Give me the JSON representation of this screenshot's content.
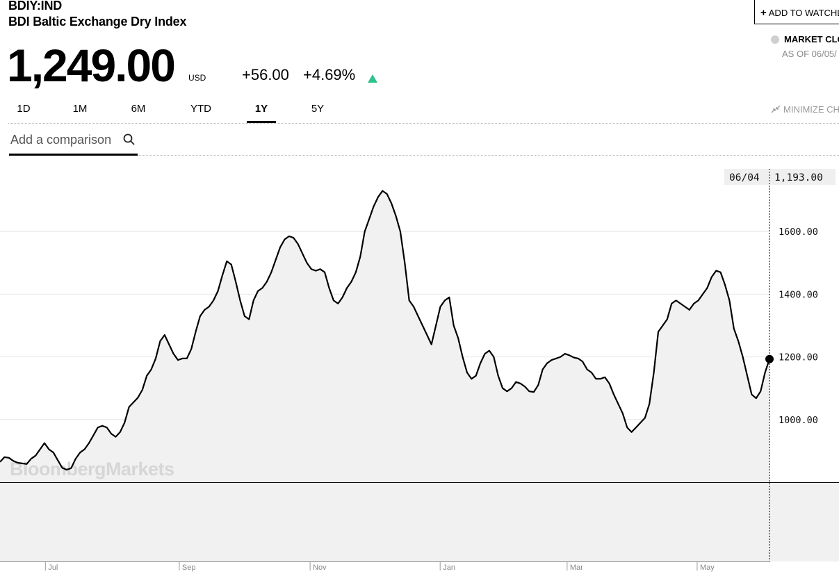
{
  "header": {
    "ticker": "BDIY:IND",
    "name": "BDI Baltic Exchange Dry Index",
    "price": "1,249.00",
    "currency": "USD",
    "change_abs": "+56.00",
    "change_pct": "+4.69%",
    "change_direction": "up",
    "up_color": "#2fc38c"
  },
  "right_header": {
    "watchlist_label": "ADD TO WATCHL",
    "market_status": "MARKET CLO",
    "as_of": "AS OF 06/05/",
    "minimize_label": "MINIMIZE CH"
  },
  "tabs": [
    {
      "label": "1D",
      "active": false
    },
    {
      "label": "1M",
      "active": false
    },
    {
      "label": "6M",
      "active": false
    },
    {
      "label": "YTD",
      "active": false
    },
    {
      "label": "1Y",
      "active": true
    },
    {
      "label": "5Y",
      "active": false
    }
  ],
  "comparison": {
    "placeholder": "Add a comparison",
    "icon": "search-icon"
  },
  "chart_data": {
    "type": "area",
    "ylim": [
      800,
      1800
    ],
    "yticks": [
      1000,
      1200,
      1400,
      1600
    ],
    "ytick_labels": [
      "1000.00",
      "1200.00",
      "1400.00",
      "1600.00"
    ],
    "x_labels": [
      "Jul",
      "Sep",
      "Nov",
      "Jan",
      "Mar",
      "May"
    ],
    "grid": true,
    "watermark": "BloombergMarkets",
    "line_color": "#000000",
    "fill_color": "#f1f1f1",
    "crosshair": {
      "date": "06/04",
      "value": "1,193.00",
      "y": 1193
    },
    "series": [
      {
        "values": [
          865,
          880,
          878,
          868,
          862,
          860,
          858,
          875,
          885,
          905,
          925,
          905,
          895,
          870,
          846,
          840,
          845,
          875,
          895,
          905,
          925,
          950,
          975,
          980,
          975,
          955,
          945,
          960,
          990,
          1040,
          1055,
          1070,
          1095,
          1140,
          1160,
          1195,
          1250,
          1270,
          1240,
          1210,
          1190,
          1195,
          1195,
          1225,
          1280,
          1330,
          1350,
          1360,
          1380,
          1410,
          1460,
          1505,
          1495,
          1440,
          1380,
          1330,
          1320,
          1380,
          1410,
          1420,
          1440,
          1470,
          1510,
          1550,
          1575,
          1585,
          1580,
          1560,
          1530,
          1500,
          1480,
          1475,
          1480,
          1470,
          1420,
          1380,
          1370,
          1390,
          1420,
          1440,
          1470,
          1520,
          1600,
          1640,
          1680,
          1710,
          1730,
          1720,
          1690,
          1650,
          1600,
          1500,
          1380,
          1360,
          1330,
          1300,
          1270,
          1240,
          1300,
          1360,
          1380,
          1390,
          1300,
          1260,
          1200,
          1150,
          1130,
          1140,
          1180,
          1210,
          1220,
          1200,
          1140,
          1100,
          1090,
          1100,
          1120,
          1115,
          1105,
          1090,
          1088,
          1110,
          1160,
          1180,
          1190,
          1195,
          1200,
          1210,
          1205,
          1198,
          1195,
          1185,
          1160,
          1150,
          1130,
          1130,
          1135,
          1115,
          1080,
          1050,
          1020,
          975,
          960,
          975,
          990,
          1005,
          1050,
          1150,
          1280,
          1300,
          1320,
          1370,
          1380,
          1370,
          1360,
          1350,
          1370,
          1380,
          1400,
          1420,
          1455,
          1475,
          1470,
          1430,
          1380,
          1290,
          1250,
          1200,
          1140,
          1080,
          1068,
          1090,
          1150,
          1193
        ]
      }
    ]
  }
}
